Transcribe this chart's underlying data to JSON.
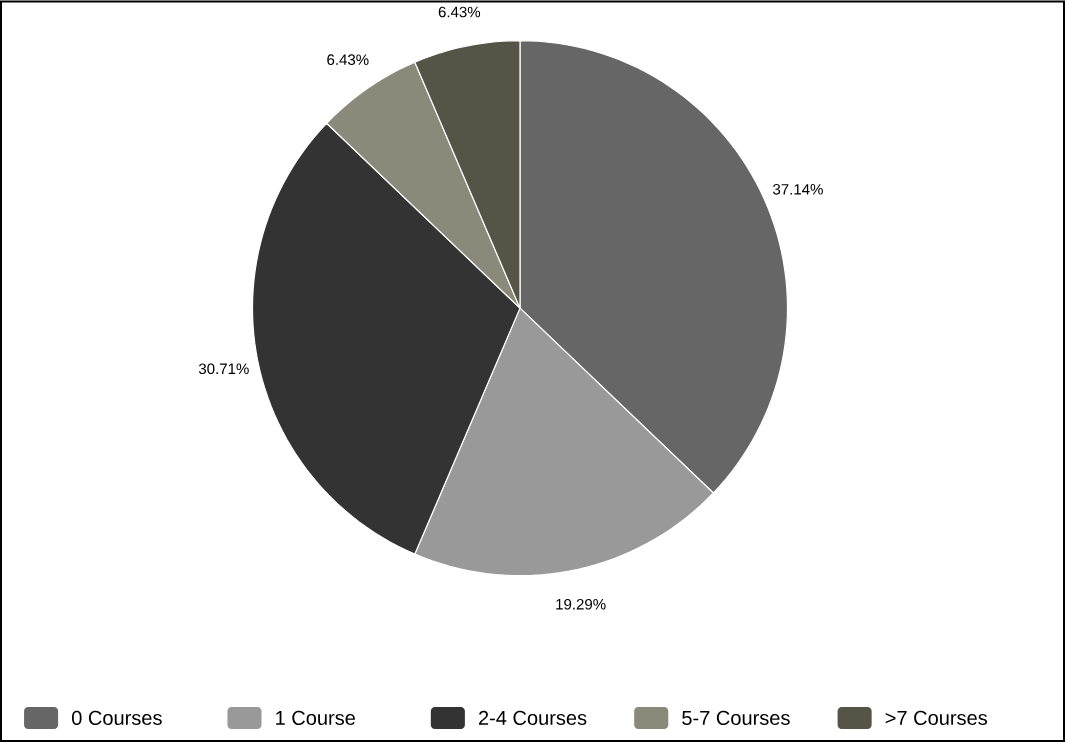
{
  "chart_data": {
    "type": "pie",
    "categories": [
      "0 Courses",
      "1 Course",
      "2-4 Courses",
      "5-7 Courses",
      ">7 Courses"
    ],
    "values": [
      37.14,
      19.29,
      30.71,
      6.43,
      6.43
    ],
    "value_labels": [
      "37.14%",
      "19.29%",
      "30.71%",
      "6.43%",
      "6.43%"
    ],
    "colors": [
      "#666666",
      "#999999",
      "#333333",
      "#8a8a7a",
      "#545447"
    ],
    "legend": "bottom"
  }
}
